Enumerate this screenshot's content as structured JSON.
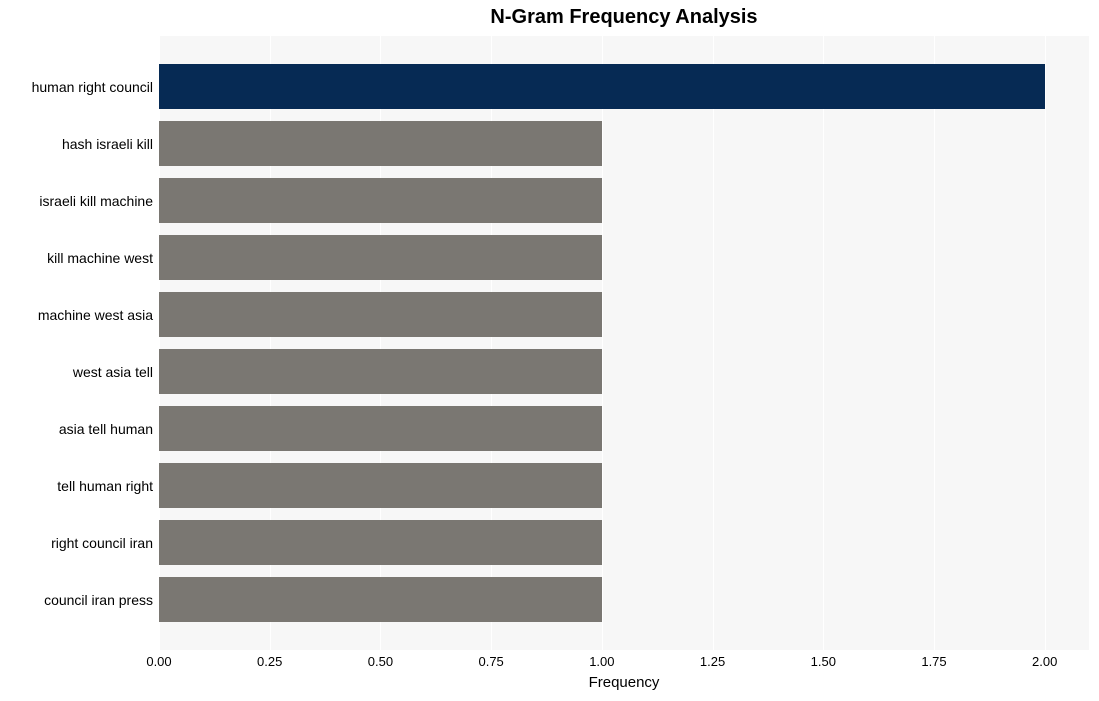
{
  "chart": {
    "type": "bar_horizontal",
    "title": "N-Gram Frequency Analysis",
    "title_fontsize": 20,
    "title_fontweight": "bold",
    "x_axis_label": "Frequency",
    "x_axis_label_fontsize": 15,
    "background_color": "#ffffff",
    "plot_background": "#f7f7f7",
    "row_alt_background": "#efefef",
    "grid_color": "#ffffff",
    "xlim": [
      0,
      2.1
    ],
    "xticks": [
      0.0,
      0.25,
      0.5,
      0.75,
      1.0,
      1.25,
      1.5,
      1.75,
      2.0
    ],
    "xtick_labels": [
      "0.00",
      "0.25",
      "0.50",
      "0.75",
      "1.00",
      "1.25",
      "1.50",
      "1.75",
      "2.00"
    ],
    "xtick_fontsize": 13,
    "ylabel_fontsize": 14,
    "bar_default_color": "#7a7772",
    "bar_highlight_color": "#062a54",
    "bar_width_ratio": 0.78,
    "categories": [
      {
        "label": "human right council",
        "value": 2.0,
        "color": "#062a54"
      },
      {
        "label": "hash israeli kill",
        "value": 1.0,
        "color": "#7a7772"
      },
      {
        "label": "israeli kill machine",
        "value": 1.0,
        "color": "#7a7772"
      },
      {
        "label": "kill machine west",
        "value": 1.0,
        "color": "#7a7772"
      },
      {
        "label": "machine west asia",
        "value": 1.0,
        "color": "#7a7772"
      },
      {
        "label": "west asia tell",
        "value": 1.0,
        "color": "#7a7772"
      },
      {
        "label": "asia tell human",
        "value": 1.0,
        "color": "#7a7772"
      },
      {
        "label": "tell human right",
        "value": 1.0,
        "color": "#7a7772"
      },
      {
        "label": "right council iran",
        "value": 1.0,
        "color": "#7a7772"
      },
      {
        "label": "council iran press",
        "value": 1.0,
        "color": "#7a7772"
      }
    ]
  }
}
